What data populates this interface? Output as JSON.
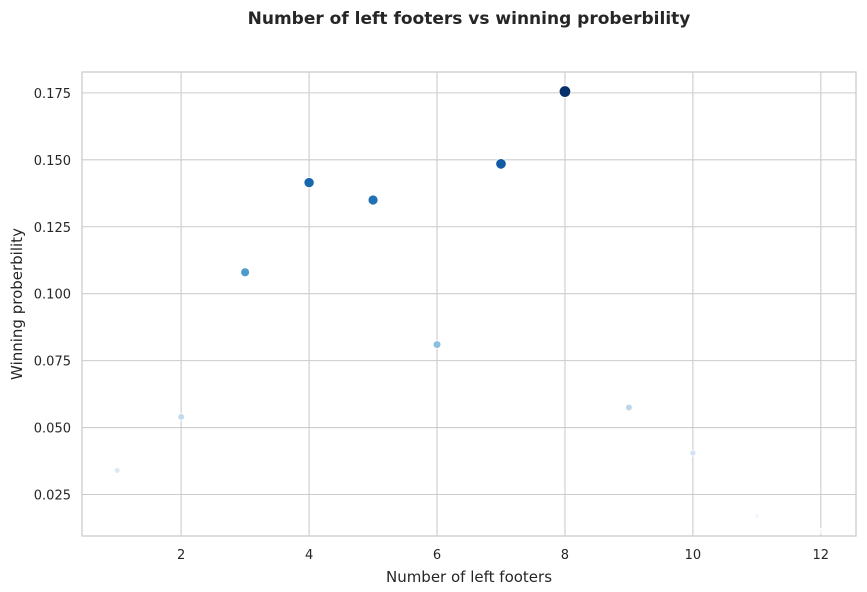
{
  "chart_data": {
    "type": "scatter",
    "title": "Number of left footers vs winning proberbility",
    "xlabel": "Number of left footers",
    "ylabel": "Winning proberbility",
    "xlim": [
      0.45,
      12.55
    ],
    "ylim": [
      0.0095,
      0.1828
    ],
    "xticks": [
      2,
      4,
      6,
      8,
      10,
      12
    ],
    "xtick_labels": [
      "2",
      "4",
      "6",
      "8",
      "10",
      "12"
    ],
    "yticks": [
      0.025,
      0.05,
      0.075,
      0.1,
      0.125,
      0.15,
      0.175
    ],
    "ytick_labels": [
      "0.025",
      "0.050",
      "0.075",
      "0.100",
      "0.125",
      "0.150",
      "0.175"
    ],
    "grid": true,
    "colormap": "Blues",
    "points": [
      {
        "x": 1,
        "y": 0.034
      },
      {
        "x": 2,
        "y": 0.054
      },
      {
        "x": 3,
        "y": 0.108
      },
      {
        "x": 4,
        "y": 0.1415
      },
      {
        "x": 5,
        "y": 0.135
      },
      {
        "x": 6,
        "y": 0.081
      },
      {
        "x": 7,
        "y": 0.1485
      },
      {
        "x": 8,
        "y": 0.1755
      },
      {
        "x": 9,
        "y": 0.0575
      },
      {
        "x": 10,
        "y": 0.0405
      },
      {
        "x": 11,
        "y": 0.017
      },
      {
        "x": 12,
        "y": 0.0115
      }
    ]
  }
}
